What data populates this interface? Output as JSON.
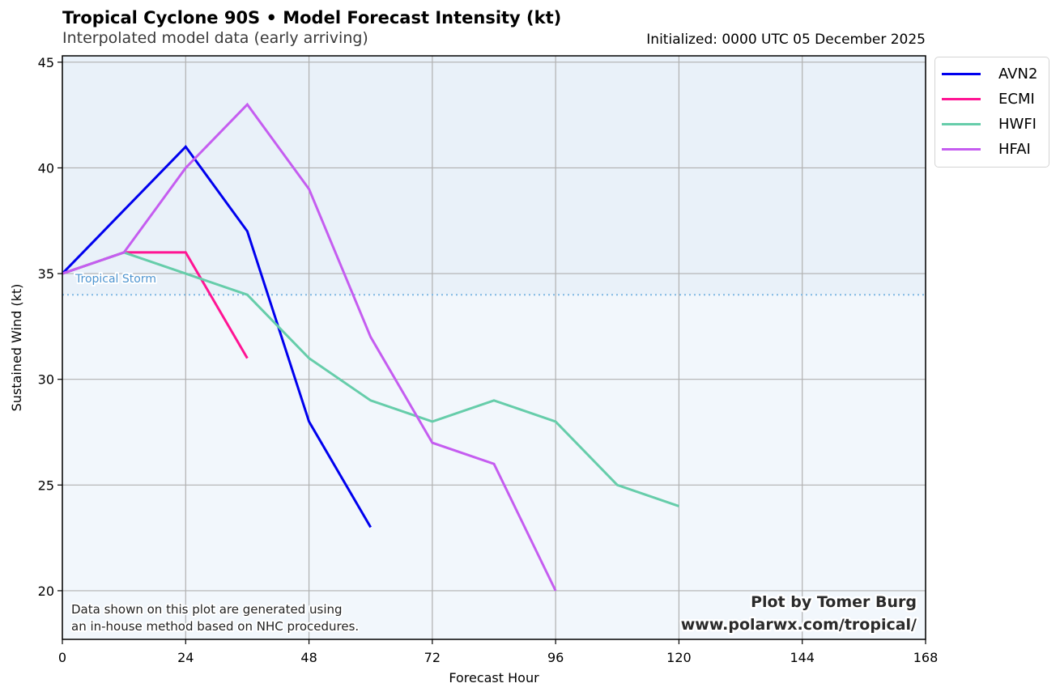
{
  "header": {
    "title": "Tropical Cyclone 90S • Model Forecast Intensity (kt)",
    "subtitle": "Interpolated model data (early arriving)",
    "initialized": "Initialized: 0000 UTC 05 December 2025"
  },
  "annotations": {
    "threshold_label": "Tropical Storm",
    "disclaimer_line1": "Data shown on this plot are generated using",
    "disclaimer_line2": "an in-house method based on NHC procedures.",
    "credit_line1": "Plot by Tomer Burg",
    "credit_line2": "www.polarwx.com/tropical/"
  },
  "colors": {
    "upper_band": "#e9f1f9",
    "lower_band": "#f2f7fc",
    "grid": "#b0b0b0",
    "threshold": "#7fb7e3"
  },
  "chart_data": {
    "type": "line",
    "title": "Tropical Cyclone 90S • Model Forecast Intensity (kt)",
    "subtitle": "Interpolated model data (early arriving)",
    "xlabel": "Forecast Hour",
    "ylabel": "Sustained Wind (kt)",
    "xlim": [
      0,
      168
    ],
    "ylim": [
      17.7,
      45.3
    ],
    "xticks": [
      0,
      24,
      48,
      72,
      96,
      120,
      144,
      168
    ],
    "yticks": [
      20,
      25,
      30,
      35,
      40,
      45
    ],
    "grid": true,
    "legend_position": "outside-top-right",
    "threshold": {
      "label": "Tropical Storm",
      "value": 34
    },
    "background_split_value": 34,
    "series": [
      {
        "name": "AVN2",
        "color": "#0000ee",
        "x": [
          0,
          12,
          24,
          36,
          48,
          60
        ],
        "values": [
          35,
          38,
          41,
          37,
          28,
          23
        ]
      },
      {
        "name": "ECMI",
        "color": "#ff1493",
        "x": [
          0,
          12,
          24,
          36
        ],
        "values": [
          35,
          36,
          36,
          31
        ]
      },
      {
        "name": "HWFI",
        "color": "#66cdaa",
        "x": [
          0,
          12,
          24,
          36,
          48,
          60,
          72,
          84,
          96,
          108,
          120
        ],
        "values": [
          35,
          36,
          35,
          34,
          31,
          29,
          28,
          29,
          28,
          25,
          24
        ]
      },
      {
        "name": "HFAI",
        "color": "#c55df0",
        "x": [
          0,
          12,
          24,
          36,
          48,
          60,
          72,
          84,
          96
        ],
        "values": [
          35,
          36,
          40,
          43,
          39,
          32,
          27,
          26,
          20
        ]
      }
    ]
  }
}
